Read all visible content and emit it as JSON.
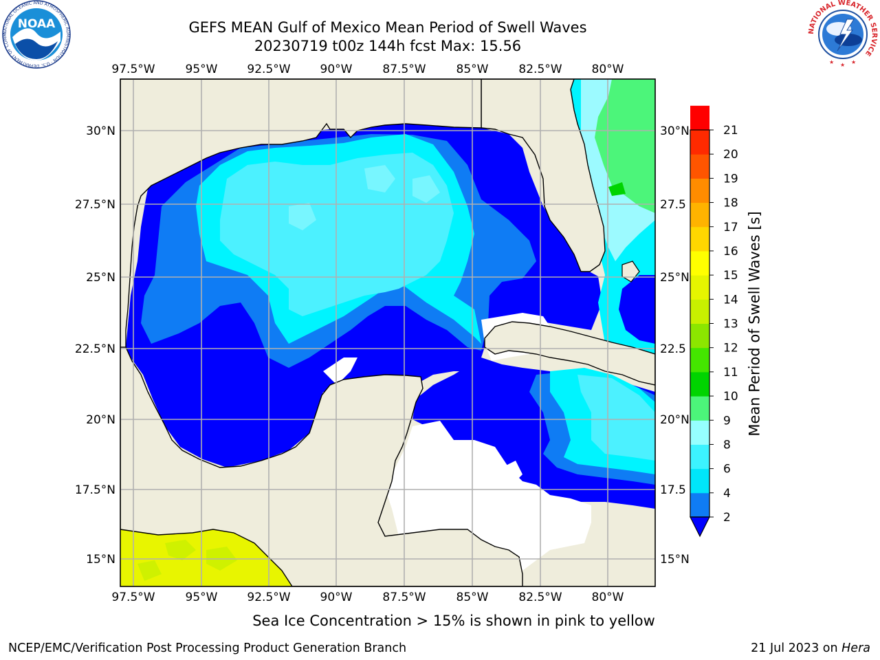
{
  "title_line1": "GEFS MEAN Gulf of Mexico Mean Period of Swell Waves",
  "title_line2": "20230719 t00z 144h fcst   Max: 15.56",
  "lon_ticks": [
    "97.5°W",
    "95°W",
    "92.5°W",
    "90°W",
    "87.5°W",
    "85°W",
    "82.5°W",
    "80°W"
  ],
  "lat_ticks_left": [
    "30°N",
    "27.5°N",
    "25°N",
    "22.5°N",
    "20°N",
    "17.5°N",
    "15°N"
  ],
  "lat_ticks_right": [
    "30°N",
    "27.5",
    "25°N",
    "22.5",
    "20°N",
    "17.5",
    "15°N"
  ],
  "colorbar": {
    "label": "Mean Period of Swell Waves [s]",
    "ticks": [
      "2",
      "4",
      "6",
      "8",
      "9",
      "10",
      "11",
      "12",
      "13",
      "14",
      "15",
      "16",
      "17",
      "18",
      "19",
      "20",
      "21"
    ],
    "colors": [
      "#0f7cf4",
      "#00e6fa",
      "#3cf3ff",
      "#96ffff",
      "#4cf57a",
      "#00d400",
      "#44e600",
      "#8ce600",
      "#c8f000",
      "#e6f500",
      "#ffff00",
      "#ffd700",
      "#ffb300",
      "#ff8c00",
      "#ff5500",
      "#ff2a00",
      "#ff0000"
    ],
    "extend_color": "#0000ff"
  },
  "ice_note": "Sea Ice Concentration > 15% is shown in pink to yellow",
  "footer_left": "NCEP/EMC/Verification Post Processing Product Generation Branch",
  "footer_right_date": "21 Jul 2023 on",
  "footer_right_host": "Hera",
  "logos": {
    "noaa_text": "NOAA",
    "noaa_ring": "NATIONAL OCEANIC AND ATMOSPHERIC ADMINISTRATION · U.S. DEPARTMENT OF COMMERCE",
    "nws_ring": "NATIONAL WEATHER SERVICE"
  },
  "colors": {
    "land": "#efeddc",
    "deep_blue": "#0000ff",
    "mid_blue": "#0f7cf4",
    "cyan": "#00f4ff",
    "light_cyan": "#4cf1ff",
    "pale_cyan": "#9cfaff",
    "green": "#4cf57a",
    "yellow": "#e8f500"
  }
}
